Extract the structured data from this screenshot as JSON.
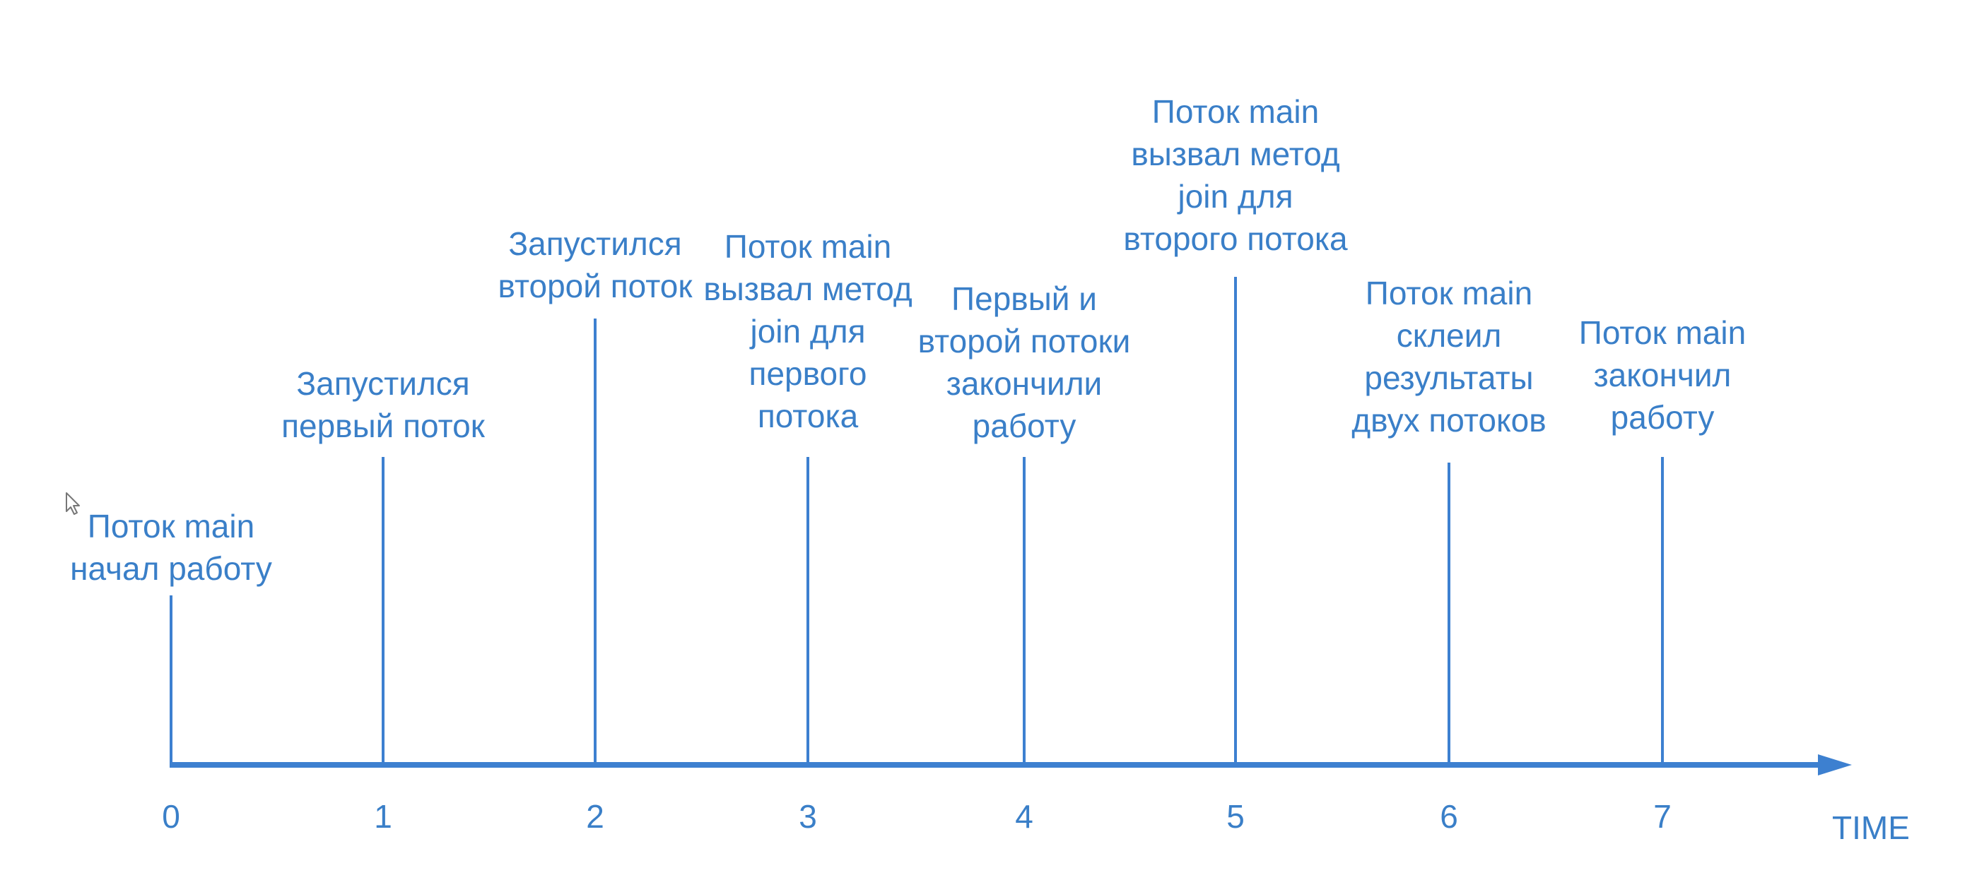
{
  "timeline": {
    "axis_label": "TIME",
    "ticks": [
      "0",
      "1",
      "2",
      "3",
      "4",
      "5",
      "6",
      "7"
    ],
    "events": [
      {
        "tick": "0",
        "label": "Поток main\nначал работу"
      },
      {
        "tick": "1",
        "label": "Запустился\nпервый поток"
      },
      {
        "tick": "2",
        "label": "Запустился\nвторой поток"
      },
      {
        "tick": "3",
        "label": "Поток main\nвызвал метод\njoin для\nпервого\nпотока"
      },
      {
        "tick": "4",
        "label": "Первый и\nвторой потоки\nзакончили\nработу"
      },
      {
        "tick": "5",
        "label": "Поток main\nвызвал метод\njoin для\nвторого потока"
      },
      {
        "tick": "6",
        "label": "Поток main\nсклеил\nрезультаты\nдвух потоков"
      },
      {
        "tick": "7",
        "label": "Поток main\nзакончил\nработу"
      }
    ],
    "colors": {
      "line": "#3d80d0",
      "text": "#3a7fc8",
      "background": "#ffffff"
    }
  },
  "cursor": {
    "icon": "mouse-pointer-icon"
  }
}
